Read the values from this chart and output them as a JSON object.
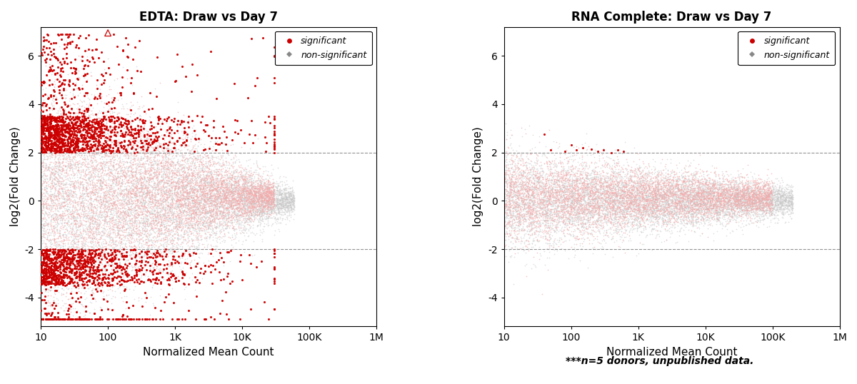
{
  "title_left": "EDTA: Draw vs Day 7",
  "title_right": "RNA Complete: Draw vs Day 7",
  "xlabel": "Normalized Mean Count",
  "ylabel": "log2(Fold Change)",
  "footnote": "***n=5 donors, unpublished data.",
  "xmin": 10,
  "xmax": 1000000,
  "ymin": -5.2,
  "ymax": 7.2,
  "yticks": [
    -4,
    -2,
    0,
    2,
    4,
    6
  ],
  "xtick_labels": [
    "10",
    "100",
    "1K",
    "10K",
    "100K",
    "1M"
  ],
  "xtick_values": [
    10,
    100,
    1000,
    10000,
    100000,
    1000000
  ],
  "hline_y": [
    2,
    -2
  ],
  "color_significant": "#CC0000",
  "color_nonsig_pink": "#F4AAAA",
  "color_nonsig_gray": "#C8C8C8",
  "legend_sig_color": "#CC0000",
  "legend_nonsig_color": "#888888",
  "background_color": "#ffffff",
  "triangle_x_log": 2.0,
  "triangle_y": 6.95,
  "hline_color": "#888888"
}
